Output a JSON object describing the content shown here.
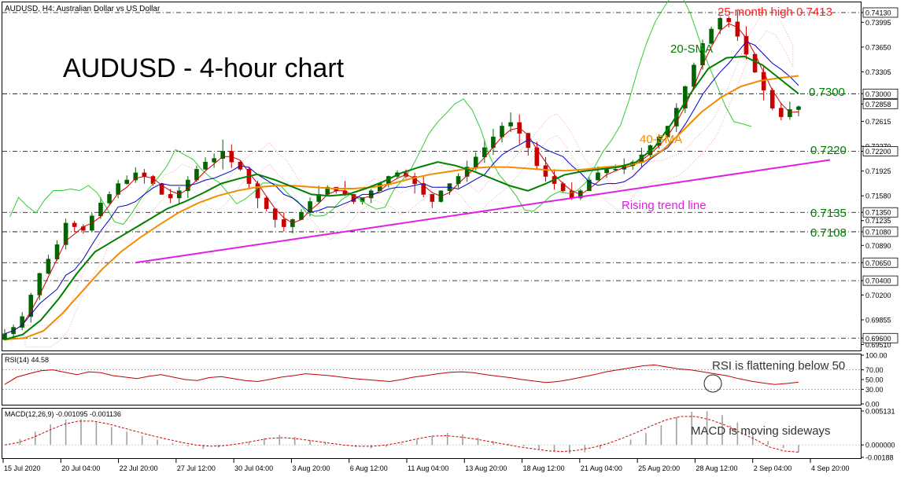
{
  "header": {
    "symbol_info": "AUDUSD, H4:  Australian Dollar vs US Dollar",
    "big_title": "AUDUSD - 4-hour chart"
  },
  "annotations": {
    "high": "25-month high 0.7413",
    "sma20": "20-SMA",
    "sma40": "40-SMA",
    "trend": "Rising trend line",
    "rsi_note": "RSI is flattening below 50",
    "macd_note": "MACD is moving sideways",
    "lvl_7300": "0.7300",
    "lvl_7220": "0.7220",
    "lvl_7135": "0.7135",
    "lvl_7108": "0.7108"
  },
  "colors": {
    "bull": "#006400",
    "bear": "#c80000",
    "sma20": "#008000",
    "sma40": "#f08c00",
    "tenkan": "#d00000",
    "kijun": "#0000c8",
    "chikou": "#33cc33",
    "cloud": "#f4a6a6",
    "trendline": "#e020e0",
    "rsi": "#c00000",
    "macd_hist": "#a0a0a0",
    "macd_signal": "#d00000",
    "high_text": "#ff2020",
    "level_text": "#008000"
  },
  "chart_data": [
    {
      "type": "candlestick",
      "title": "AUDUSD - 4-hour chart",
      "ylim": [
        0.6945,
        0.7425
      ],
      "price_ticks": [
        "0.74130",
        "0.73995",
        "0.73650",
        "0.73305",
        "0.73000",
        "0.72858",
        "0.72615",
        "0.72270",
        "0.72200",
        "0.71925",
        "0.71580",
        "0.71350",
        "0.71235",
        "0.71080",
        "0.70890",
        "0.70650",
        "0.70400",
        "0.70200",
        "0.69855",
        "0.69510",
        "0.69600"
      ],
      "price_tick_values": [
        0.7413,
        0.73995,
        0.7365,
        0.73305,
        0.73,
        0.72858,
        0.72615,
        0.7227,
        0.722,
        0.71925,
        0.7158,
        0.7135,
        0.71235,
        0.7108,
        0.7089,
        0.7065,
        0.704,
        0.702,
        0.69855,
        0.6951,
        0.696
      ],
      "highlighted_ticks": [
        "0.74130",
        "0.73000",
        "0.72858",
        "0.72200",
        "0.71350",
        "0.71080",
        "0.70650",
        "0.70400",
        "0.69600"
      ],
      "horizontal_levels": [
        0.7413,
        0.73,
        0.722,
        0.7135,
        0.7108,
        0.7065,
        0.704,
        0.696
      ],
      "x_ticks": [
        "15 Jul 2020",
        "20 Jul 04:00",
        "22 Jul 20:00",
        "27 Jul 12:00",
        "30 Jul 04:00",
        "3 Aug 20:00",
        "6 Aug 12:00",
        "11 Aug 04:00",
        "13 Aug 20:00",
        "18 Aug 12:00",
        "21 Aug 04:00",
        "25 Aug 20:00",
        "28 Aug 12:00",
        "2 Sep 04:00",
        "4 Sep 20:00"
      ],
      "key_closes": [
        0.6966,
        0.6975,
        0.699,
        0.702,
        0.705,
        0.707,
        0.709,
        0.712,
        0.7115,
        0.711,
        0.713,
        0.7148,
        0.716,
        0.7175,
        0.718,
        0.719,
        0.7185,
        0.7175,
        0.716,
        0.7155,
        0.7165,
        0.718,
        0.7195,
        0.7205,
        0.721,
        0.722,
        0.7205,
        0.7195,
        0.7175,
        0.7155,
        0.714,
        0.7125,
        0.7115,
        0.7125,
        0.7135,
        0.715,
        0.716,
        0.717,
        0.7165,
        0.716,
        0.715,
        0.7155,
        0.7165,
        0.7175,
        0.7185,
        0.719,
        0.7185,
        0.7175,
        0.716,
        0.715,
        0.7165,
        0.7175,
        0.7185,
        0.7198,
        0.7212,
        0.7225,
        0.724,
        0.7255,
        0.726,
        0.7245,
        0.7225,
        0.72,
        0.7185,
        0.7175,
        0.7165,
        0.7155,
        0.7165,
        0.718,
        0.719,
        0.7195,
        0.7195,
        0.72,
        0.7205,
        0.7215,
        0.7228,
        0.724,
        0.7255,
        0.728,
        0.731,
        0.734,
        0.737,
        0.739,
        0.7405,
        0.74,
        0.738,
        0.7355,
        0.733,
        0.7305,
        0.728,
        0.7268,
        0.7278,
        0.7282
      ],
      "sma20": [
        0.6958,
        0.6965,
        0.6985,
        0.7015,
        0.705,
        0.708,
        0.7095,
        0.711,
        0.7125,
        0.714,
        0.715,
        0.7162,
        0.7175,
        0.7182,
        0.7188,
        0.718,
        0.717,
        0.716,
        0.7158,
        0.716,
        0.7168,
        0.7178,
        0.719,
        0.7198,
        0.7205,
        0.72,
        0.7192,
        0.7182,
        0.7172,
        0.7165,
        0.7175,
        0.7187,
        0.7192,
        0.7195,
        0.7198,
        0.7205,
        0.7225,
        0.726,
        0.73,
        0.7335,
        0.735,
        0.7352,
        0.734,
        0.732,
        0.73
      ],
      "sma40": [
        0.6958,
        0.696,
        0.697,
        0.6995,
        0.7025,
        0.7055,
        0.708,
        0.71,
        0.7118,
        0.7135,
        0.7148,
        0.7158,
        0.7165,
        0.717,
        0.7172,
        0.7172,
        0.717,
        0.7168,
        0.7168,
        0.717,
        0.7175,
        0.7182,
        0.7188,
        0.7192,
        0.7196,
        0.7198,
        0.7198,
        0.7196,
        0.7194,
        0.7193,
        0.7195,
        0.7198,
        0.72,
        0.7205,
        0.7222,
        0.7248,
        0.7275,
        0.7295,
        0.731,
        0.7318,
        0.7322,
        0.7325
      ],
      "trend_line": {
        "from": 0.7065,
        "to": 0.7208
      }
    },
    {
      "type": "line",
      "title": "RSI(14) 44.58",
      "ylim": [
        0,
        100
      ],
      "ticks": [
        "100.00",
        "70.00",
        "50.00",
        "30.00",
        "0.00"
      ],
      "tick_values": [
        100,
        70,
        50,
        30,
        0
      ],
      "values": [
        40,
        55,
        62,
        68,
        70,
        65,
        60,
        66,
        64,
        58,
        55,
        52,
        57,
        60,
        55,
        50,
        48,
        54,
        56,
        52,
        48,
        46,
        50,
        55,
        58,
        62,
        60,
        58,
        55,
        52,
        50,
        48,
        46,
        50,
        55,
        58,
        62,
        65,
        66,
        64,
        60,
        57,
        54,
        50,
        47,
        44,
        46,
        50,
        55,
        60,
        66,
        70,
        74,
        78,
        80,
        76,
        72,
        70,
        66,
        62,
        58,
        52,
        47,
        43,
        40,
        42,
        44.58
      ]
    },
    {
      "type": "bar",
      "title": "MACD(12,26,9) -0.001095 -0.001136",
      "ylim": [
        -0.00188,
        0.00513
      ],
      "ticks": [
        "0.005131",
        "0.000000",
        "-0.00188"
      ],
      "tick_values": [
        0.005131,
        0.0,
        -0.00188
      ],
      "values": [
        0.0,
        0.0009,
        0.002,
        0.0031,
        0.0038,
        0.0039,
        0.0034,
        0.0027,
        0.002,
        0.0014,
        0.0008,
        0.0003,
        -0.0002,
        -0.0006,
        -0.0004,
        0.0,
        0.0005,
        0.001,
        0.0015,
        0.0012,
        0.0007,
        0.0003,
        0.0,
        -0.0003,
        -0.0005,
        -0.0003,
        0.0002,
        0.0008,
        0.0014,
        0.0018,
        0.0016,
        0.0011,
        0.0006,
        0.0002,
        -0.0002,
        -0.0006,
        -0.001,
        -0.0013,
        -0.0011,
        -0.0006,
        0.0,
        0.0008,
        0.0018,
        0.003,
        0.0042,
        0.005,
        0.0051,
        0.0045,
        0.0034,
        0.002,
        0.0006,
        -0.0005,
        -0.0011
      ],
      "signal": [
        0.0,
        0.0004,
        0.0012,
        0.0022,
        0.0031,
        0.0036,
        0.0036,
        0.0032,
        0.0026,
        0.002,
        0.0014,
        0.0009,
        0.0004,
        0.0,
        -0.0002,
        -0.0001,
        0.0002,
        0.0006,
        0.001,
        0.0011,
        0.0009,
        0.0006,
        0.0003,
        0.0,
        -0.0002,
        -0.0002,
        0.0,
        0.0004,
        0.0009,
        0.0013,
        0.0014,
        0.0012,
        0.0009,
        0.0005,
        0.0001,
        -0.0003,
        -0.0006,
        -0.0009,
        -0.001,
        -0.0008,
        -0.0004,
        0.0002,
        0.001,
        0.0019,
        0.0029,
        0.0038,
        0.0043,
        0.0043,
        0.0038,
        0.003,
        0.0019,
        0.0009,
        -0.0003,
        -0.0009,
        -0.0011
      ]
    }
  ]
}
